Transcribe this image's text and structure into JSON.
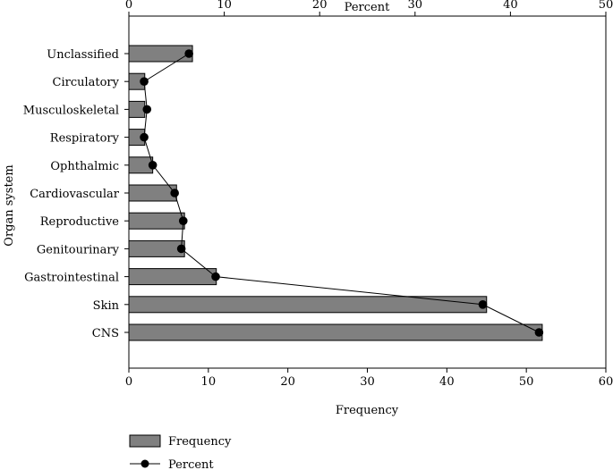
{
  "chart_data": {
    "type": "bar",
    "orientation": "horizontal",
    "ylabel": "Organ system",
    "categories": [
      "Unclassified",
      "Circulatory",
      "Musculoskeletal",
      "Respiratory",
      "Ophthalmic",
      "Cardiovascular",
      "Reproductive",
      "Genitourinary",
      "Gastrointestinal",
      "Skin",
      "CNS"
    ],
    "series": [
      {
        "name": "Frequency",
        "type": "bar",
        "axis": "bottom",
        "color": "#808080",
        "values": [
          8,
          2,
          2,
          2,
          3,
          6,
          7,
          7,
          11,
          45,
          52
        ]
      },
      {
        "name": "Percent",
        "type": "line",
        "axis": "top",
        "color": "#000000",
        "values": [
          6.3,
          1.6,
          1.9,
          1.6,
          2.5,
          4.8,
          5.7,
          5.5,
          9.1,
          37.1,
          43.0
        ]
      }
    ],
    "bottom_axis": {
      "label": "Frequency",
      "range": [
        0,
        60
      ],
      "ticks": [
        0,
        10,
        20,
        30,
        40,
        50,
        60
      ]
    },
    "top_axis": {
      "label": "Percent",
      "range": [
        0,
        50
      ],
      "ticks": [
        0,
        10,
        20,
        30,
        40,
        50
      ]
    },
    "legend": {
      "position": "bottom-left",
      "items": [
        "Frequency",
        "Percent"
      ]
    },
    "grid": false
  }
}
